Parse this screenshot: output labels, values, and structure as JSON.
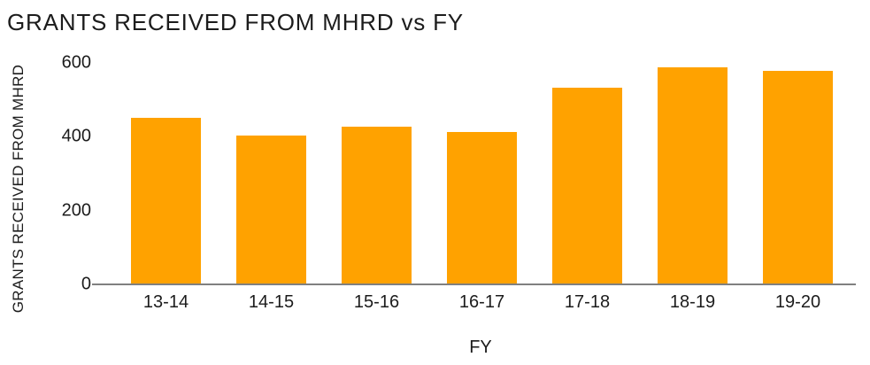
{
  "title": "GRANTS RECEIVED FROM MHRD vs FY",
  "chart_data": {
    "type": "bar",
    "title": "GRANTS RECEIVED FROM MHRD vs FY",
    "xlabel": "FY",
    "ylabel": "GRANTS RECEIVED FROM MHRD",
    "categories": [
      "13-14",
      "14-15",
      "15-16",
      "16-17",
      "17-18",
      "18-19",
      "19-20"
    ],
    "values": [
      450,
      400,
      425,
      410,
      530,
      585,
      575
    ],
    "yticks": [
      0,
      200,
      400,
      600
    ],
    "ylim": [
      0,
      600
    ],
    "grid": false,
    "legend": false,
    "colors": {
      "bar": "#FFA200",
      "axis_line": "#808080",
      "text": "#1C1C1C"
    }
  }
}
